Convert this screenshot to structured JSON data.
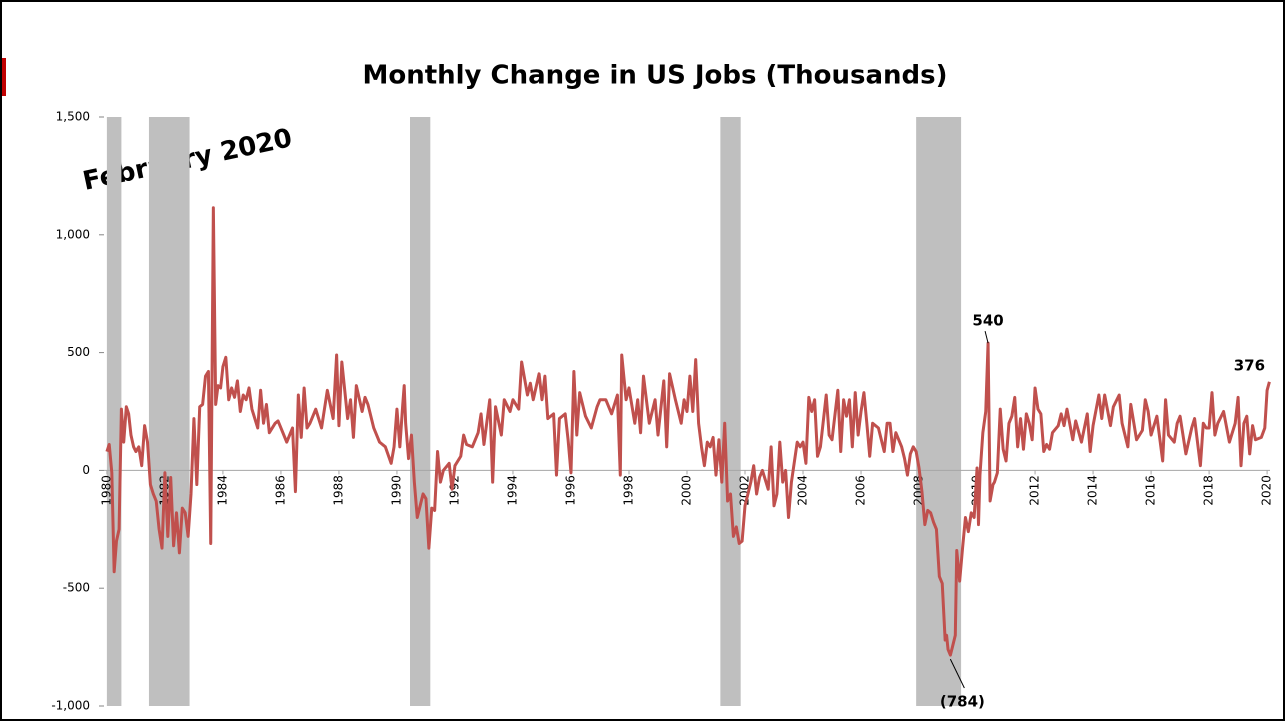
{
  "chart_data": {
    "type": "line",
    "title": "Monthly Change in US Jobs (Thousands)",
    "annotation_title": "February 2020",
    "xlim": [
      1979.9,
      2020.1
    ],
    "xticks": [
      1980,
      1982,
      1984,
      1986,
      1988,
      1990,
      1992,
      1994,
      1996,
      1998,
      2000,
      2002,
      2004,
      2006,
      2008,
      2010,
      2012,
      2014,
      2016,
      2018,
      2020
    ],
    "ylim": [
      -1000,
      1500
    ],
    "yticks": [
      {
        "value": -1000,
        "label": "-1,000"
      },
      -500,
      0,
      500,
      {
        "value": 1000,
        "label": "1,000"
      },
      {
        "value": 1500,
        "label": "1,500"
      }
    ],
    "shaded_periods": [
      [
        1980.0,
        1980.5
      ],
      [
        1981.45,
        1982.85
      ],
      [
        1990.45,
        1991.15
      ],
      [
        2001.15,
        2001.85
      ],
      [
        2007.9,
        2009.45
      ]
    ],
    "shade_color": "#bfbfbf",
    "x": [
      1980.0,
      1980.08,
      1980.17,
      1980.25,
      1980.33,
      1980.42,
      1980.5,
      1980.58,
      1980.67,
      1980.75,
      1980.83,
      1980.92,
      1981.0,
      1981.1,
      1981.2,
      1981.3,
      1981.4,
      1981.5,
      1981.6,
      1981.7,
      1981.8,
      1981.9,
      1982.0,
      1982.1,
      1982.2,
      1982.3,
      1982.4,
      1982.5,
      1982.6,
      1982.7,
      1982.8,
      1982.9,
      1983.0,
      1983.1,
      1983.2,
      1983.3,
      1983.4,
      1983.5,
      1983.58,
      1983.67,
      1983.75,
      1983.83,
      1983.92,
      1984.0,
      1984.1,
      1984.2,
      1984.3,
      1984.4,
      1984.5,
      1984.6,
      1984.7,
      1984.8,
      1984.9,
      1985.0,
      1985.2,
      1985.3,
      1985.4,
      1985.5,
      1985.6,
      1985.8,
      1985.9,
      1986.0,
      1986.2,
      1986.4,
      1986.5,
      1986.6,
      1986.7,
      1986.8,
      1986.9,
      1987.0,
      1987.2,
      1987.4,
      1987.6,
      1987.8,
      1987.92,
      1988.0,
      1988.1,
      1988.3,
      1988.4,
      1988.5,
      1988.6,
      1988.8,
      1988.9,
      1989.0,
      1989.2,
      1989.4,
      1989.6,
      1989.8,
      1989.9,
      1990.0,
      1990.1,
      1990.2,
      1990.25,
      1990.3,
      1990.4,
      1990.5,
      1990.6,
      1990.7,
      1990.8,
      1990.9,
      1991.0,
      1991.1,
      1991.2,
      1991.3,
      1991.4,
      1991.5,
      1991.6,
      1991.8,
      1991.9,
      1992.0,
      1992.2,
      1992.3,
      1992.4,
      1992.6,
      1992.8,
      1992.9,
      1993.0,
      1993.2,
      1993.3,
      1993.4,
      1993.6,
      1993.7,
      1993.9,
      1994.0,
      1994.2,
      1994.3,
      1994.5,
      1994.6,
      1994.7,
      1994.9,
      1995.0,
      1995.1,
      1995.2,
      1995.4,
      1995.5,
      1995.6,
      1995.8,
      1995.9,
      1996.0,
      1996.1,
      1996.2,
      1996.3,
      1996.5,
      1996.7,
      1996.9,
      1997.0,
      1997.2,
      1997.4,
      1997.6,
      1997.7,
      1997.75,
      1997.9,
      1998.0,
      1998.2,
      1998.3,
      1998.4,
      1998.5,
      1998.7,
      1998.9,
      1999.0,
      1999.2,
      1999.3,
      1999.4,
      1999.6,
      1999.8,
      1999.9,
      2000.0,
      2000.1,
      2000.2,
      2000.3,
      2000.4,
      2000.5,
      2000.6,
      2000.7,
      2000.8,
      2000.9,
      2001.0,
      2001.1,
      2001.2,
      2001.3,
      2001.4,
      2001.5,
      2001.6,
      2001.7,
      2001.8,
      2001.9,
      2002.0,
      2002.1,
      2002.2,
      2002.3,
      2002.4,
      2002.5,
      2002.6,
      2002.8,
      2002.9,
      2003.0,
      2003.1,
      2003.2,
      2003.3,
      2003.4,
      2003.5,
      2003.6,
      2003.8,
      2003.9,
      2004.0,
      2004.1,
      2004.2,
      2004.3,
      2004.4,
      2004.5,
      2004.6,
      2004.8,
      2004.9,
      2005.0,
      2005.2,
      2005.3,
      2005.4,
      2005.5,
      2005.6,
      2005.7,
      2005.8,
      2005.9,
      2006.0,
      2006.1,
      2006.2,
      2006.3,
      2006.4,
      2006.6,
      2006.8,
      2006.9,
      2007.0,
      2007.1,
      2007.2,
      2007.4,
      2007.5,
      2007.6,
      2007.7,
      2007.8,
      2007.9,
      2008.0,
      2008.1,
      2008.2,
      2008.3,
      2008.4,
      2008.5,
      2008.6,
      2008.7,
      2008.8,
      2008.9,
      2008.95,
      2009.0,
      2009.08,
      2009.15,
      2009.25,
      2009.3,
      2009.4,
      2009.5,
      2009.6,
      2009.7,
      2009.8,
      2009.9,
      2010.0,
      2010.05,
      2010.1,
      2010.2,
      2010.3,
      2010.38,
      2010.45,
      2010.55,
      2010.6,
      2010.7,
      2010.8,
      2010.9,
      2011.0,
      2011.1,
      2011.2,
      2011.3,
      2011.4,
      2011.5,
      2011.6,
      2011.7,
      2011.8,
      2011.9,
      2012.0,
      2012.1,
      2012.2,
      2012.3,
      2012.4,
      2012.5,
      2012.6,
      2012.8,
      2012.9,
      2013.0,
      2013.1,
      2013.3,
      2013.4,
      2013.6,
      2013.8,
      2013.9,
      2014.0,
      2014.2,
      2014.3,
      2014.4,
      2014.6,
      2014.7,
      2014.9,
      2015.0,
      2015.2,
      2015.3,
      2015.5,
      2015.7,
      2015.8,
      2015.9,
      2016.0,
      2016.2,
      2016.4,
      2016.5,
      2016.6,
      2016.8,
      2016.9,
      2017.0,
      2017.2,
      2017.4,
      2017.5,
      2017.7,
      2017.8,
      2017.9,
      2018.0,
      2018.1,
      2018.2,
      2018.3,
      2018.5,
      2018.7,
      2018.9,
      2019.0,
      2019.1,
      2019.2,
      2019.3,
      2019.4,
      2019.5,
      2019.6,
      2019.8,
      2019.92,
      2020.0,
      2020.08
    ],
    "series": [
      {
        "name": "Monthly change",
        "color": "#c0504d",
        "values": [
          80,
          110,
          -10,
          -430,
          -300,
          -250,
          260,
          120,
          270,
          240,
          150,
          100,
          80,
          100,
          20,
          190,
          120,
          -60,
          -100,
          -130,
          -250,
          -330,
          -10,
          -280,
          -30,
          -320,
          -180,
          -350,
          -160,
          -180,
          -280,
          -100,
          220,
          -60,
          270,
          280,
          400,
          420,
          -310,
          1115,
          280,
          360,
          350,
          440,
          480,
          300,
          350,
          310,
          380,
          250,
          320,
          300,
          350,
          260,
          180,
          340,
          200,
          280,
          160,
          200,
          210,
          180,
          120,
          180,
          -90,
          320,
          140,
          350,
          180,
          200,
          260,
          180,
          340,
          220,
          490,
          190,
          460,
          220,
          300,
          140,
          360,
          250,
          310,
          280,
          180,
          120,
          100,
          30,
          100,
          260,
          100,
          280,
          360,
          200,
          50,
          150,
          -50,
          -200,
          -150,
          -100,
          -120,
          -330,
          -160,
          -170,
          80,
          -50,
          0,
          30,
          -80,
          20,
          60,
          150,
          110,
          100,
          160,
          240,
          110,
          300,
          -50,
          270,
          150,
          300,
          250,
          300,
          260,
          460,
          320,
          370,
          300,
          410,
          300,
          400,
          220,
          240,
          -20,
          220,
          240,
          130,
          -10,
          420,
          150,
          330,
          230,
          180,
          270,
          300,
          300,
          240,
          320,
          -20,
          490,
          300,
          350,
          200,
          300,
          160,
          400,
          200,
          300,
          150,
          380,
          100,
          410,
          300,
          200,
          300,
          250,
          400,
          250,
          470,
          200,
          100,
          20,
          120,
          100,
          140,
          -20,
          130,
          -50,
          200,
          -130,
          -100,
          -280,
          -240,
          -310,
          -300,
          -150,
          -100,
          -50,
          20,
          -100,
          -30,
          0,
          -80,
          100,
          -150,
          -100,
          120,
          -50,
          0,
          -200,
          -50,
          120,
          100,
          120,
          30,
          310,
          250,
          300,
          60,
          100,
          320,
          150,
          130,
          340,
          80,
          300,
          230,
          300,
          100,
          330,
          150,
          250,
          330,
          200,
          60,
          200,
          180,
          80,
          200,
          200,
          80,
          160,
          100,
          50,
          -20,
          70,
          100,
          80,
          10,
          -90,
          -230,
          -170,
          -180,
          -220,
          -250,
          -450,
          -480,
          -720,
          -700,
          -760,
          -784,
          -750,
          -700,
          -340,
          -470,
          -330,
          -200,
          -260,
          -180,
          -200,
          10,
          -230,
          -20,
          160,
          250,
          540,
          -130,
          -60,
          -50,
          -10,
          260,
          90,
          40,
          200,
          230,
          310,
          100,
          220,
          90,
          240,
          200,
          130,
          350,
          260,
          240,
          80,
          110,
          90,
          160,
          190,
          240,
          190,
          260,
          130,
          210,
          120,
          240,
          80,
          190,
          320,
          220,
          320,
          190,
          270,
          320,
          200,
          100,
          280,
          130,
          170,
          300,
          250,
          150,
          230,
          40,
          300,
          150,
          120,
          200,
          230,
          70,
          180,
          220,
          20,
          200,
          180,
          180,
          330,
          150,
          200,
          250,
          120,
          200,
          310,
          20,
          200,
          230,
          70,
          190,
          130,
          140,
          180,
          340,
          376
        ]
      }
    ],
    "annotations": [
      {
        "text": "540",
        "x": 2010.38,
        "y": 540,
        "position": "above"
      },
      {
        "text": "376",
        "x": 2020.08,
        "y": 376,
        "position": "above-left"
      },
      {
        "text": "(784)",
        "x": 2009.08,
        "y": -784,
        "position": "below"
      }
    ],
    "grid": false
  }
}
